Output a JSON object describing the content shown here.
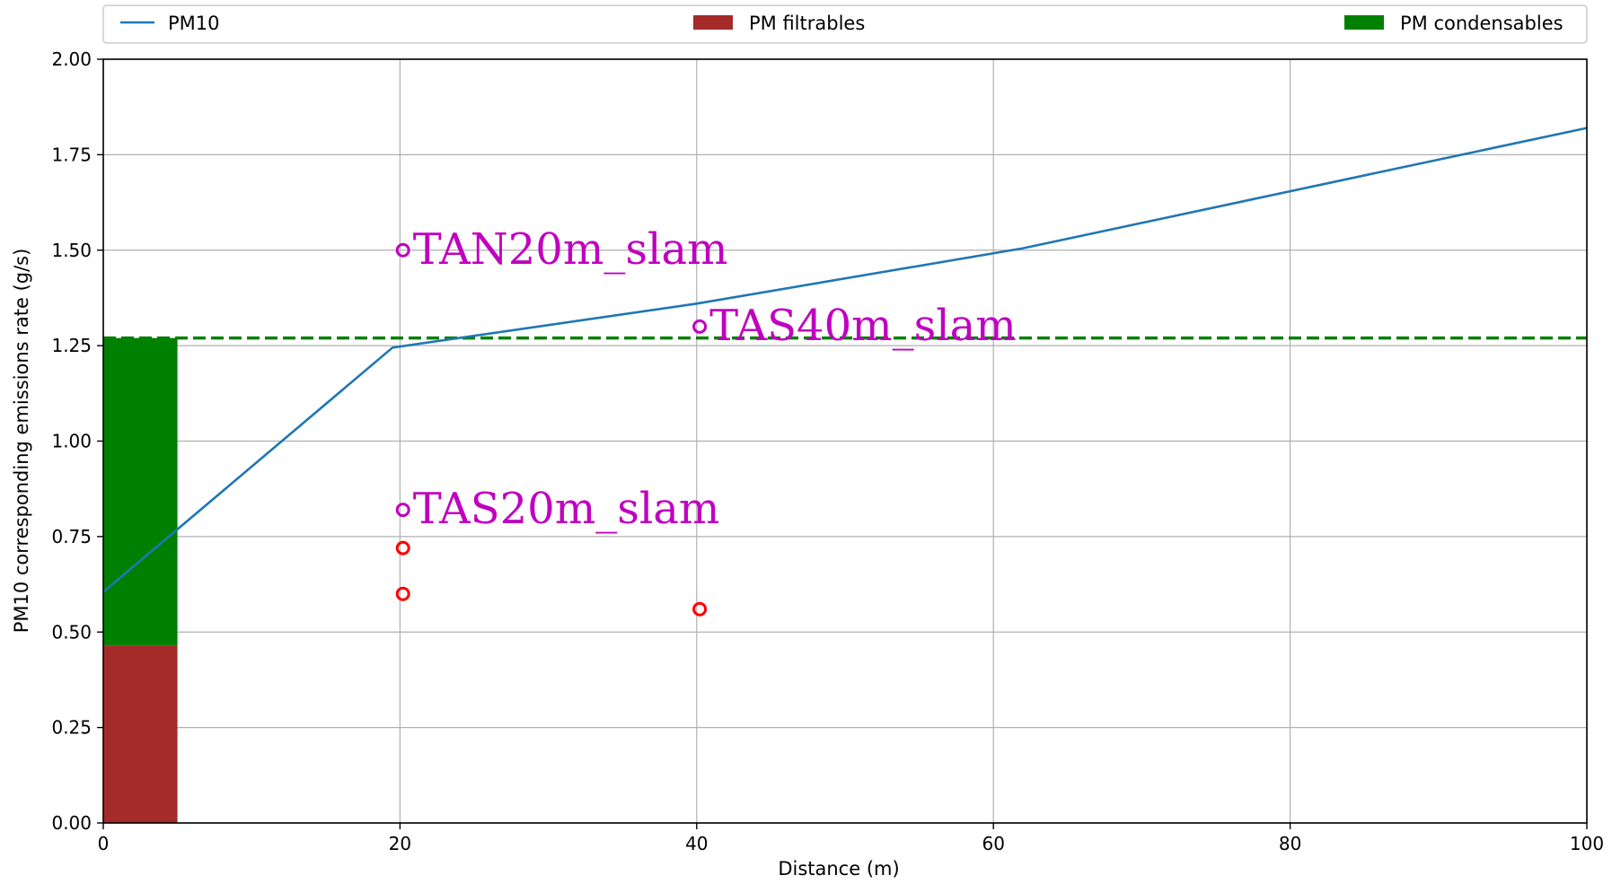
{
  "chart_data": {
    "type": "line",
    "xlabel": "Distance (m)",
    "ylabel": "PM10 corresponding emissions rate (g/s)",
    "xlim": [
      0,
      100
    ],
    "ylim": [
      0,
      2.0
    ],
    "x_ticks": [
      0,
      20,
      40,
      60,
      80,
      100
    ],
    "y_ticks": [
      0.0,
      0.25,
      0.5,
      0.75,
      1.0,
      1.25,
      1.5,
      1.75,
      2.0
    ],
    "x_tick_labels": [
      "0",
      "20",
      "40",
      "60",
      "80",
      "100"
    ],
    "y_tick_labels": [
      "0.00",
      "0.25",
      "0.50",
      "0.75",
      "1.00",
      "1.25",
      "1.50",
      "1.75",
      "2.00"
    ],
    "grid": true,
    "legend": {
      "placement": "top, spanning full width",
      "entries": [
        {
          "label": "PM10",
          "kind": "line",
          "color": "#1f77b4"
        },
        {
          "label": "PM filtrables",
          "kind": "patch",
          "color": "#a52a2a"
        },
        {
          "label": "PM condensables",
          "kind": "patch",
          "color": "#008000"
        }
      ]
    },
    "series": [
      {
        "name": "PM10",
        "kind": "line",
        "color": "#1f77b4",
        "x": [
          0,
          19.5,
          40,
          62,
          100
        ],
        "y": [
          0.605,
          1.245,
          1.36,
          1.505,
          1.82
        ]
      }
    ],
    "stacked_bar": {
      "x_range": [
        0,
        5
      ],
      "segments": [
        {
          "name": "PM filtrables",
          "color": "#a52a2a",
          "from": 0,
          "to": 0.465
        },
        {
          "name": "PM condensables",
          "color": "#008000",
          "from": 0.465,
          "to": 1.27
        }
      ]
    },
    "reference_line": {
      "kind": "horizontal-dashed",
      "y": 1.27,
      "color": "#008000"
    },
    "annotated_points": [
      {
        "label": "TAN20m_slam",
        "x": 20.2,
        "y": 1.5,
        "color": "#c000c0"
      },
      {
        "label": "TAS40m_slam",
        "x": 40.2,
        "y": 1.3,
        "color": "#c000c0"
      },
      {
        "label": "TAS20m_slam",
        "x": 20.2,
        "y": 0.82,
        "color": "#c000c0"
      }
    ],
    "red_points": {
      "color": "#ff0000",
      "x": [
        20.2,
        20.2,
        40.2
      ],
      "y": [
        0.72,
        0.6,
        0.56
      ]
    }
  }
}
